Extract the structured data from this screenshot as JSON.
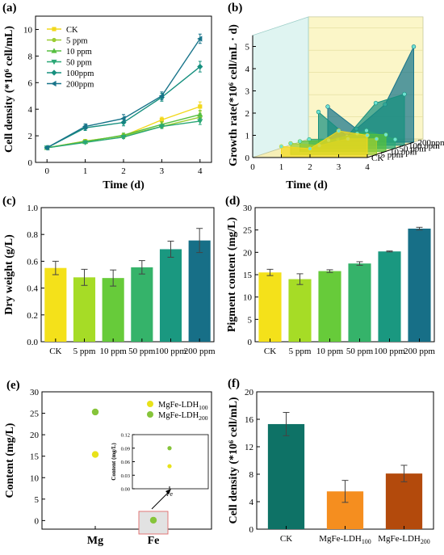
{
  "figure": {
    "panels": [
      "(a)",
      "(b)",
      "(c)",
      "(d)",
      "(e)",
      "(f)"
    ]
  },
  "chart_data": [
    {
      "id": "a",
      "type": "line",
      "label": "(a)",
      "xlabel": "Time (d)",
      "ylabel": "Cell density (*10⁶ cell/mL)",
      "x": [
        0,
        1,
        2,
        3,
        4
      ],
      "xlim": [
        -0.3,
        4.3
      ],
      "ylim": [
        0,
        11
      ],
      "yticks": [
        0,
        2,
        4,
        6,
        8,
        10
      ],
      "legend": "top-left",
      "series": [
        {
          "name": "CK",
          "values": [
            1.1,
            1.6,
            2.0,
            3.2,
            4.2
          ],
          "err": [
            0.05,
            0.1,
            0.15,
            0.2,
            0.35
          ],
          "color": "#f2d81c",
          "marker": "square"
        },
        {
          "name": "5 ppm",
          "values": [
            1.1,
            1.6,
            2.0,
            2.7,
            3.4
          ],
          "err": [
            0.05,
            0.1,
            0.1,
            0.15,
            0.3
          ],
          "color": "#9acd32",
          "marker": "circle"
        },
        {
          "name": "10 ppm",
          "values": [
            1.1,
            1.55,
            2.05,
            2.85,
            3.6
          ],
          "err": [
            0.05,
            0.1,
            0.15,
            0.2,
            0.3
          ],
          "color": "#56bf3f",
          "marker": "triangle-up"
        },
        {
          "name": "50 ppm",
          "values": [
            1.1,
            1.5,
            1.9,
            2.7,
            3.1
          ],
          "err": [
            0.05,
            0.1,
            0.1,
            0.15,
            0.25
          ],
          "color": "#2aa776",
          "marker": "triangle-down"
        },
        {
          "name": "100ppm",
          "values": [
            1.1,
            2.6,
            3.0,
            4.9,
            7.2
          ],
          "err": [
            0.05,
            0.2,
            0.25,
            0.3,
            0.4
          ],
          "color": "#17907f",
          "marker": "diamond"
        },
        {
          "name": "200ppm",
          "values": [
            1.1,
            2.7,
            3.3,
            5.0,
            9.3
          ],
          "err": [
            0.05,
            0.2,
            0.3,
            0.3,
            0.35
          ],
          "color": "#18748a",
          "marker": "triangle-left"
        }
      ]
    },
    {
      "id": "b",
      "type": "area",
      "label": "(b)",
      "xlabel": "Time (d)",
      "zlabel": "Growth rate(*10⁶ cell/mL · d)",
      "x": [
        1,
        2,
        3,
        4
      ],
      "xticks": [
        0,
        1,
        2,
        3,
        4
      ],
      "zticks": [
        0,
        1,
        2,
        3,
        4,
        5
      ],
      "depth_labels": [
        "CK",
        "5 ppm",
        "10 ppm",
        "50 ppm",
        "100 ppm",
        "200ppm"
      ],
      "series": [
        {
          "name": "CK",
          "values": [
            0.5,
            0.4,
            1.2,
            1.0
          ],
          "color": "#f2d81c"
        },
        {
          "name": "5 ppm",
          "values": [
            0.5,
            0.4,
            0.7,
            0.7
          ],
          "color": "#9acd32"
        },
        {
          "name": "10 ppm",
          "values": [
            0.45,
            0.5,
            0.8,
            0.75
          ],
          "color": "#56bf3f"
        },
        {
          "name": "50 ppm",
          "values": [
            0.4,
            0.4,
            0.8,
            0.4
          ],
          "color": "#2aa776"
        },
        {
          "name": "100 ppm",
          "values": [
            1.5,
            0.4,
            1.9,
            2.3
          ],
          "color": "#17907f"
        },
        {
          "name": "200ppm",
          "values": [
            1.6,
            0.6,
            1.7,
            4.3
          ],
          "color": "#18748a"
        }
      ]
    },
    {
      "id": "c",
      "type": "bar",
      "label": "(c)",
      "xlabel": "",
      "ylabel": "Dry weight (g/L)",
      "categories": [
        "CK",
        "5 ppm",
        "10 ppm",
        "50 ppm",
        "100 ppm",
        "200 ppm"
      ],
      "values": [
        0.55,
        0.48,
        0.475,
        0.555,
        0.69,
        0.755
      ],
      "err": [
        0.05,
        0.06,
        0.06,
        0.05,
        0.06,
        0.09
      ],
      "colors": [
        "#f4e11a",
        "#a6dc26",
        "#67cb3a",
        "#35b36a",
        "#1a9880",
        "#176f87"
      ],
      "ylim": [
        0.0,
        1.0
      ],
      "yticks": [
        0.0,
        0.2,
        0.4,
        0.6,
        0.8,
        1.0
      ]
    },
    {
      "id": "d",
      "type": "bar",
      "label": "(d)",
      "xlabel": "",
      "ylabel": "Pigment content (mg/L)",
      "categories": [
        "CK",
        "5 ppm",
        "10 ppm",
        "50 ppm",
        "100 ppm",
        "200 ppm"
      ],
      "values": [
        15.5,
        14.0,
        15.8,
        17.5,
        20.2,
        25.3
      ],
      "err": [
        0.7,
        1.2,
        0.3,
        0.4,
        0.1,
        0.3
      ],
      "colors": [
        "#f4e11a",
        "#a6dc26",
        "#67cb3a",
        "#35b36a",
        "#1a9880",
        "#176f87"
      ],
      "ylim": [
        0,
        30
      ],
      "yticks": [
        0,
        5,
        10,
        15,
        20,
        25,
        30
      ]
    },
    {
      "id": "e",
      "type": "scatter",
      "label": "(e)",
      "xlabel": "",
      "ylabel": "Content (mg/L)",
      "categories": [
        "Mg",
        "Fe"
      ],
      "ylim": [
        -2,
        30
      ],
      "yticks": [
        0,
        5,
        10,
        15,
        20,
        25,
        30
      ],
      "legend": "top-right",
      "series": [
        {
          "name": "MgFe-LDH",
          "sub": "100",
          "values": [
            15.4,
            0.05
          ],
          "color": "#e8e21a"
        },
        {
          "name": "MgFe-LDH",
          "sub": "200",
          "values": [
            25.3,
            0.09
          ],
          "color": "#86c43a"
        }
      ],
      "inset": {
        "ylabel": "Content (mg/L)",
        "xlabel": "Fe",
        "ylim": [
          0.0,
          0.12
        ],
        "yticks": [
          "0.00",
          "0.03",
          "0.06",
          "0.09",
          "0.12"
        ]
      }
    },
    {
      "id": "f",
      "type": "bar",
      "label": "(f)",
      "xlabel": "",
      "ylabel": "Cell density (*10⁶ cell/mL)",
      "categories": [
        {
          "main": "CK",
          "sub": ""
        },
        {
          "main": "MgFe-LDH",
          "sub": "100"
        },
        {
          "main": "MgFe-LDH",
          "sub": "200"
        }
      ],
      "values": [
        15.3,
        5.5,
        8.1
      ],
      "err": [
        1.7,
        1.6,
        1.2
      ],
      "colors": [
        "#0e7266",
        "#f58e1f",
        "#b34a0c"
      ],
      "ylim": [
        0,
        20
      ],
      "yticks": [
        0,
        4,
        8,
        12,
        16,
        20
      ]
    }
  ]
}
